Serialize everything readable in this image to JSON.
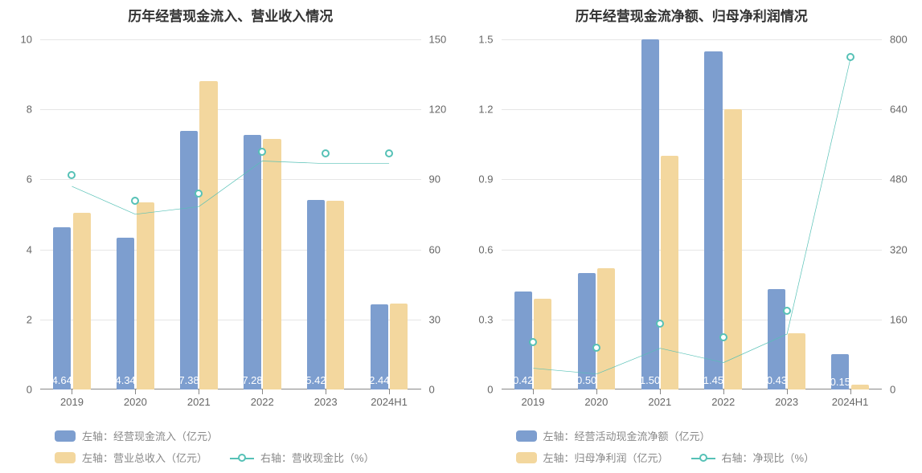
{
  "palette": {
    "bar_blue": "#7d9ecf",
    "bar_yellow": "#f3d79e",
    "line_teal": "#56c1b6",
    "grid": "#e6e6e6",
    "axis": "#888888",
    "tick_text": "#666666",
    "bar_label_text": "#ffffff"
  },
  "charts": [
    {
      "id": "left",
      "title": "历年经营现金流入、营业收入情况",
      "categories": [
        "2019",
        "2020",
        "2021",
        "2022",
        "2023",
        "2024H1"
      ],
      "left_axis": {
        "min": 0,
        "max": 10,
        "step": 2
      },
      "right_axis": {
        "min": 0,
        "max": 150,
        "step": 30
      },
      "series_bar_a": {
        "name": "左轴：经营现金流入（亿元）",
        "color_key": "bar_blue",
        "values": [
          4.64,
          4.34,
          7.38,
          7.28,
          5.42,
          2.44
        ],
        "labels": [
          "4.64",
          "4.34",
          "7.38",
          "7.28",
          "5.42",
          "2.44"
        ]
      },
      "series_bar_b": {
        "name": "左轴：营业总收入（亿元）",
        "color_key": "bar_yellow",
        "values": [
          5.05,
          5.35,
          8.8,
          7.15,
          5.4,
          2.45
        ]
      },
      "series_line": {
        "name": "右轴：营收现金比（%）",
        "color_key": "line_teal",
        "values": [
          92,
          81,
          84,
          102,
          101,
          101
        ]
      },
      "bar_width_pct": 28,
      "bar_gap_pct": 3
    },
    {
      "id": "right",
      "title": "历年经营现金流净额、归母净利润情况",
      "categories": [
        "2019",
        "2020",
        "2021",
        "2022",
        "2023",
        "2024H1"
      ],
      "left_axis": {
        "min": 0,
        "max": 1.5,
        "step": 0.3
      },
      "right_axis": {
        "min": 0,
        "max": 800,
        "step": 160
      },
      "series_bar_a": {
        "name": "左轴：经营活动现金流净额（亿元）",
        "color_key": "bar_blue",
        "values": [
          0.42,
          0.5,
          1.5,
          1.45,
          0.43,
          0.15
        ],
        "labels": [
          "0.42",
          "0.50",
          "1.50",
          "1.45",
          "0.43",
          "0.15"
        ]
      },
      "series_bar_b": {
        "name": "左轴：归母净利润（亿元）",
        "color_key": "bar_yellow",
        "values": [
          0.39,
          0.52,
          1.0,
          1.2,
          0.24,
          0.02
        ]
      },
      "series_line": {
        "name": "右轴：净现比（%）",
        "color_key": "line_teal",
        "values": [
          108,
          96,
          150,
          120,
          180,
          760
        ]
      },
      "bar_width_pct": 28,
      "bar_gap_pct": 3
    }
  ]
}
